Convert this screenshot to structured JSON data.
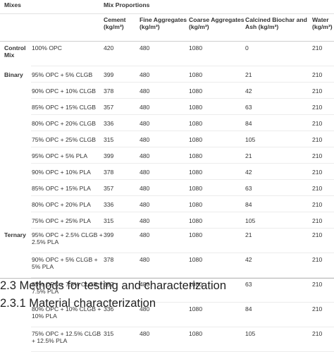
{
  "table": {
    "header": {
      "mixes": "Mixes",
      "mix_proportions": "Mix Proportions",
      "cement": "Cement (kg/m³)",
      "fine": "Fine Aggregates (kg/m³)",
      "coarse": "Coarse Aggregates (kg/m³)",
      "biochar": "Calcined Biochar and Ash (kg/m³)",
      "water": "Water (kg/m³)"
    },
    "groups": [
      {
        "label": "Control Mix"
      },
      {
        "label": "Binary"
      },
      {
        "label": "Ternary"
      }
    ],
    "rows": [
      {
        "mix": "100% OPC",
        "cement": "420",
        "fine": "480",
        "coarse": "1080",
        "biochar": "0",
        "water": "210"
      },
      {
        "mix": "95% OPC + 5% CLGB",
        "cement": "399",
        "fine": "480",
        "coarse": "1080",
        "biochar": "21",
        "water": "210"
      },
      {
        "mix": "90% OPC + 10% CLGB",
        "cement": "378",
        "fine": "480",
        "coarse": "1080",
        "biochar": "42",
        "water": "210"
      },
      {
        "mix": "85% OPC + 15% CLGB",
        "cement": "357",
        "fine": "480",
        "coarse": "1080",
        "biochar": "63",
        "water": "210"
      },
      {
        "mix": "80% OPC + 20% CLGB",
        "cement": "336",
        "fine": "480",
        "coarse": "1080",
        "biochar": "84",
        "water": "210"
      },
      {
        "mix": "75% OPC + 25% CLGB",
        "cement": "315",
        "fine": "480",
        "coarse": "1080",
        "biochar": "105",
        "water": "210"
      },
      {
        "mix": "95% OPC + 5% PLA",
        "cement": "399",
        "fine": "480",
        "coarse": "1080",
        "biochar": "21",
        "water": "210"
      },
      {
        "mix": "90% OPC + 10% PLA",
        "cement": "378",
        "fine": "480",
        "coarse": "1080",
        "biochar": "42",
        "water": "210"
      },
      {
        "mix": "85% OPC + 15% PLA",
        "cement": "357",
        "fine": "480",
        "coarse": "1080",
        "biochar": "63",
        "water": "210"
      },
      {
        "mix": "80% OPC + 20% PLA",
        "cement": "336",
        "fine": "480",
        "coarse": "1080",
        "biochar": "84",
        "water": "210"
      },
      {
        "mix": "75% OPC + 25% PLA",
        "cement": "315",
        "fine": "480",
        "coarse": "1080",
        "biochar": "105",
        "water": "210"
      },
      {
        "mix": "95% OPC + 2.5% CLGB + 2.5% PLA",
        "cement": "399",
        "fine": "480",
        "coarse": "1080",
        "biochar": "21",
        "water": "210"
      },
      {
        "mix": "90% OPC + 5% CLGB + 5% PLA",
        "cement": "378",
        "fine": "480",
        "coarse": "1080",
        "biochar": "42",
        "water": "210"
      },
      {
        "mix": "85% OPC + 7.5% CLGB + 7.5% PLA",
        "cement": "357",
        "fine": "480",
        "coarse": "1080",
        "biochar": "63",
        "water": "210"
      },
      {
        "mix": "80% OPC + 10% CLGB + 10% PLA",
        "cement": "336",
        "fine": "480",
        "coarse": "1080",
        "biochar": "84",
        "water": "210"
      },
      {
        "mix": "75% OPC + 12.5% CLGB + 12.5% PLA",
        "cement": "315",
        "fine": "480",
        "coarse": "1080",
        "biochar": "105",
        "water": "210"
      }
    ]
  },
  "headings": {
    "section": "2.3 Methods for testing and characterization",
    "subsection": "2.3.1 Material characterization"
  }
}
